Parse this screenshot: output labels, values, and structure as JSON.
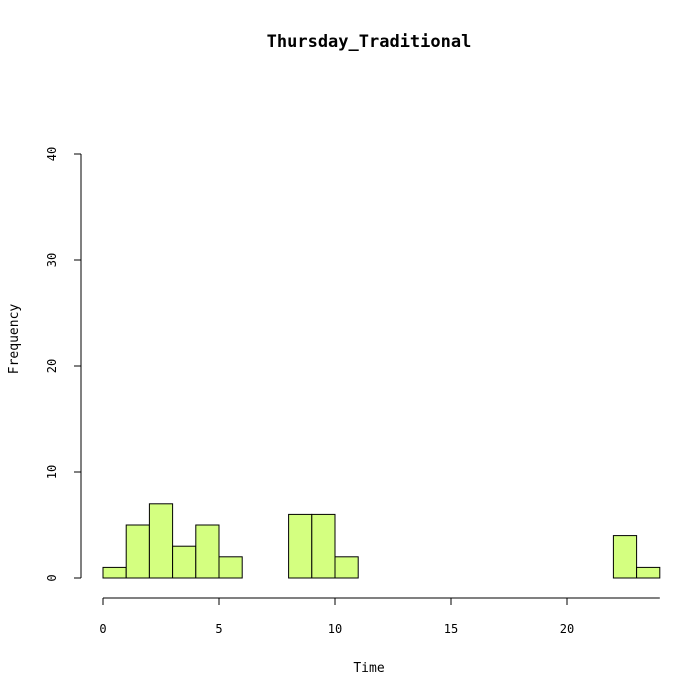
{
  "chart_data": {
    "type": "bar",
    "title": "Thursday_Traditional",
    "xlabel": "Time",
    "ylabel": "Frequency",
    "bin_width": 1,
    "bins": [
      {
        "start": 0,
        "end": 1,
        "count": 1
      },
      {
        "start": 1,
        "end": 2,
        "count": 5
      },
      {
        "start": 2,
        "end": 3,
        "count": 7
      },
      {
        "start": 3,
        "end": 4,
        "count": 3
      },
      {
        "start": 4,
        "end": 5,
        "count": 5
      },
      {
        "start": 5,
        "end": 6,
        "count": 2
      },
      {
        "start": 6,
        "end": 7,
        "count": 0
      },
      {
        "start": 7,
        "end": 8,
        "count": 0
      },
      {
        "start": 8,
        "end": 9,
        "count": 6
      },
      {
        "start": 9,
        "end": 10,
        "count": 6
      },
      {
        "start": 10,
        "end": 11,
        "count": 2
      },
      {
        "start": 11,
        "end": 12,
        "count": 0
      },
      {
        "start": 12,
        "end": 13,
        "count": 0
      },
      {
        "start": 13,
        "end": 14,
        "count": 0
      },
      {
        "start": 14,
        "end": 15,
        "count": 0
      },
      {
        "start": 15,
        "end": 16,
        "count": 0
      },
      {
        "start": 16,
        "end": 17,
        "count": 0
      },
      {
        "start": 17,
        "end": 18,
        "count": 0
      },
      {
        "start": 18,
        "end": 19,
        "count": 0
      },
      {
        "start": 19,
        "end": 20,
        "count": 0
      },
      {
        "start": 20,
        "end": 21,
        "count": 0
      },
      {
        "start": 21,
        "end": 22,
        "count": 0
      },
      {
        "start": 22,
        "end": 23,
        "count": 4
      },
      {
        "start": 23,
        "end": 24,
        "count": 1
      }
    ],
    "xlim": [
      0,
      24
    ],
    "ylim": [
      0,
      40
    ],
    "xticks": [
      "0",
      "5",
      "10",
      "15",
      "20"
    ],
    "yticks": [
      "0",
      "10",
      "20",
      "30",
      "40"
    ],
    "bar_color": "#d4ff80",
    "grid": false,
    "legend": "none"
  }
}
